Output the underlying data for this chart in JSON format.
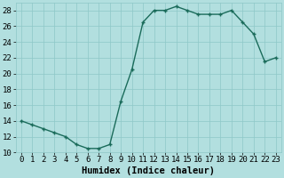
{
  "x": [
    0,
    1,
    2,
    3,
    4,
    5,
    6,
    7,
    8,
    9,
    10,
    11,
    12,
    13,
    14,
    15,
    16,
    17,
    18,
    19,
    20,
    21,
    22,
    23
  ],
  "y": [
    14,
    13.5,
    13,
    12.5,
    12,
    11,
    10.5,
    10.5,
    11,
    16.5,
    20.5,
    26.5,
    28,
    28,
    28.5,
    28,
    27.5,
    27.5,
    27.5,
    28,
    26.5,
    25,
    21.5,
    22
  ],
  "line_color": "#1a6b5a",
  "marker": "+",
  "marker_size": 3.5,
  "bg_color": "#b2dfdf",
  "grid_color": "#8ec8c8",
  "xlabel": "Humidex (Indice chaleur)",
  "xlim": [
    -0.5,
    23.5
  ],
  "ylim": [
    10,
    29
  ],
  "yticks": [
    10,
    12,
    14,
    16,
    18,
    20,
    22,
    24,
    26,
    28
  ],
  "xticks": [
    0,
    1,
    2,
    3,
    4,
    5,
    6,
    7,
    8,
    9,
    10,
    11,
    12,
    13,
    14,
    15,
    16,
    17,
    18,
    19,
    20,
    21,
    22,
    23
  ],
  "xlabel_fontsize": 7.5,
  "tick_fontsize": 6.5,
  "linewidth": 1.0,
  "marker_color": "#1a6b5a",
  "spine_color": "#8ec8c8"
}
